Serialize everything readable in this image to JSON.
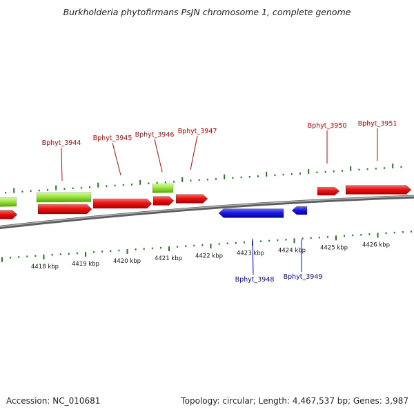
{
  "title": "Burkholderia phytofirmans PsJN chromosome 1, complete genome",
  "footer": {
    "accession": "Accession: NC_010681",
    "summary": "Topology: circular; Length: 4,467,537 bp; Genes: 3,987"
  },
  "colors": {
    "forward_cds": "#ee1111",
    "reverse_cds": "#1a1ae6",
    "rna_gene": "#9be83a",
    "ticks": "#1f7a1f",
    "backbone": "#8a8a8a",
    "forward_label": "#cc0000",
    "reverse_label": "#0000cc"
  },
  "axis_labels": [
    "4418 kbp",
    "4419 kbp",
    "4420 kbp",
    "4421 kbp",
    "4422 kbp",
    "4423 kbp",
    "4424 kbp",
    "4425 kbp",
    "4426 kbp"
  ],
  "gene_labels": {
    "forward": [
      "Bphyt_3944",
      "Bphyt_3945",
      "Bphyt_3946",
      "Bphyt_3947",
      "Bphyt_3950",
      "Bphyt_3951"
    ],
    "reverse": [
      "Bphyt_3948",
      "Bphyt_3949"
    ]
  }
}
